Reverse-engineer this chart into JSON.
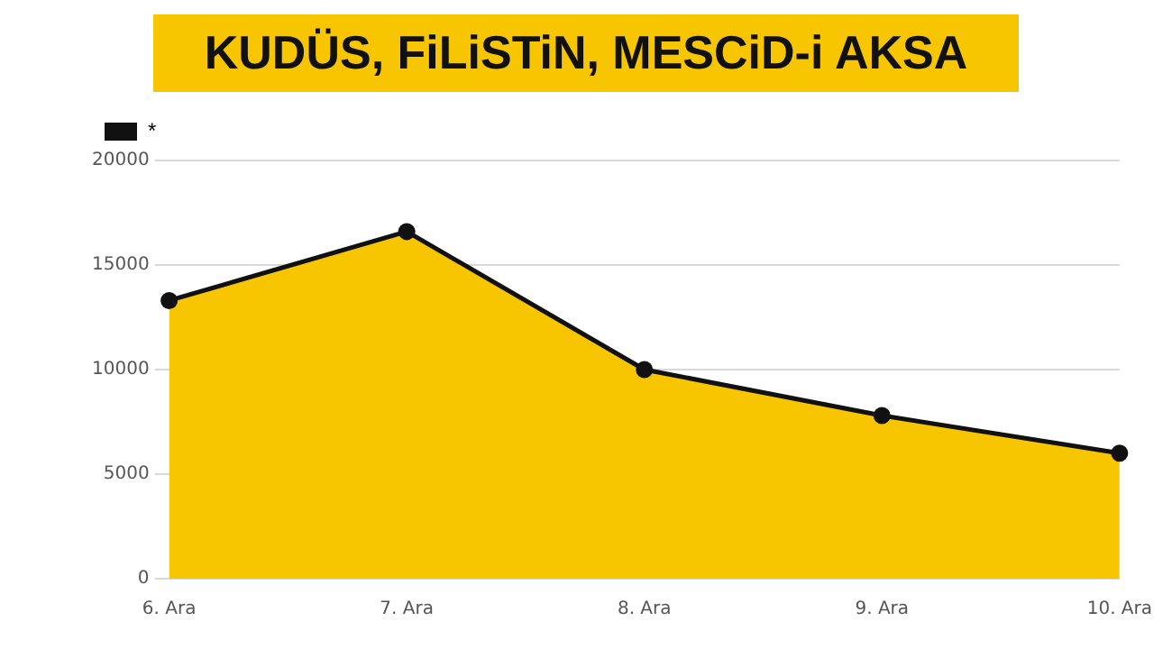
{
  "chart_data": {
    "type": "area",
    "title": "KUDÜS, FiLiSTiN, MESCiD-i AKSA",
    "categories": [
      "6. Ara",
      "7. Ara",
      "8. Ara",
      "9. Ara",
      "10. Ara"
    ],
    "series": [
      {
        "name": "*",
        "color": "#111111",
        "values": [
          13300,
          16600,
          10000,
          7800,
          6000
        ]
      }
    ],
    "ylim": [
      0,
      20000
    ],
    "yticks": [
      0,
      5000,
      10000,
      15000,
      20000
    ],
    "grid": "y",
    "legend": "top left",
    "marker": "circle"
  }
}
